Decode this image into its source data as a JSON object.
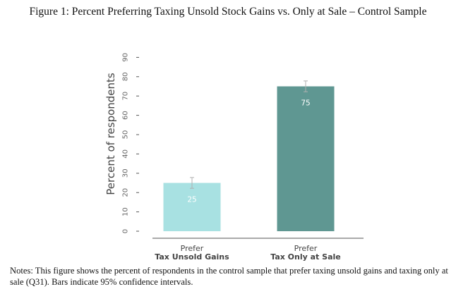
{
  "figure": {
    "title": "Figure 1: Percent Preferring Taxing Unsold Stock Gains vs. Only at Sale – Control Sample",
    "notes": "Notes: This figure shows the percent of respondents in the control sample that prefer taxing unsold gains and taxing only at sale (Q31). Bars indicate 95% confidence intervals."
  },
  "chart_data": {
    "type": "bar",
    "categories": [
      {
        "line1": "Prefer",
        "line2": "Tax Unsold Gains"
      },
      {
        "line1": "Prefer",
        "line2": "Tax Only at Sale"
      }
    ],
    "values": [
      25,
      75
    ],
    "data_labels": [
      "25",
      "75"
    ],
    "ci": [
      [
        22.2,
        27.8
      ],
      [
        72.2,
        77.8
      ]
    ],
    "colors": [
      "#a8e1e2",
      "#5f9792"
    ],
    "ylabel": "Percent of respondents",
    "ylim": [
      0,
      90
    ],
    "yticks": [
      0,
      10,
      20,
      30,
      40,
      50,
      60,
      70,
      80,
      90
    ],
    "grid": false
  }
}
